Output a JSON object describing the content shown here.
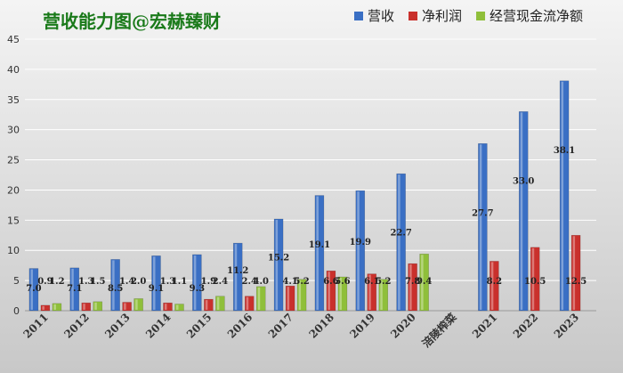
{
  "chart_data": {
    "type": "bar",
    "title": "营收能力图@宏赫臻财",
    "xlabel": "",
    "ylabel": "",
    "ylim": [
      0,
      45
    ],
    "yticks": [
      0,
      5,
      10,
      15,
      20,
      25,
      30,
      35,
      40,
      45
    ],
    "grid": true,
    "legend_position": "top-right",
    "categories": [
      "2011",
      "2012",
      "2013",
      "2014",
      "2015",
      "2016",
      "2017",
      "2018",
      "2019",
      "2020",
      "涪陵榨菜",
      "2021",
      "2022",
      "2023"
    ],
    "series": [
      {
        "name": "营收",
        "color": "#3a6fc4",
        "values": [
          7.0,
          7.1,
          8.5,
          9.1,
          9.3,
          11.2,
          15.2,
          19.1,
          19.9,
          22.7,
          null,
          27.7,
          33.0,
          38.1
        ]
      },
      {
        "name": "净利润",
        "color": "#c9302c",
        "values": [
          0.9,
          1.3,
          1.4,
          1.3,
          1.9,
          2.4,
          4.1,
          6.6,
          6.1,
          7.8,
          null,
          8.2,
          10.5,
          12.5
        ]
      },
      {
        "name": "经营现金流净额",
        "color": "#8fbf3a",
        "values": [
          1.2,
          1.5,
          2.0,
          1.1,
          2.4,
          4.0,
          5.2,
          5.6,
          5.2,
          9.4,
          null,
          null,
          null,
          null
        ]
      }
    ],
    "data_labels": [
      [
        "7.0",
        "7.1",
        "8.5",
        "9.1",
        "9.3",
        "11.2",
        "15.2",
        "19.1",
        "19.9",
        "22.7",
        "",
        "27.7",
        "33.0",
        "38.1"
      ],
      [
        "0.9",
        "1.3",
        "1.4",
        "1.3",
        "1.9",
        "2.4",
        "4.1",
        "6.6",
        "6.1",
        "7.8",
        "",
        "8.2",
        "10.5",
        "12.5"
      ],
      [
        "1.2",
        "1.5",
        "2.0",
        "1.1",
        "2.4",
        "4.0",
        "5.2",
        "5.6",
        "5.2",
        "9.4",
        "",
        "",
        "",
        ""
      ]
    ],
    "colors": {
      "background_top": "#f4f4f4",
      "background_bottom": "#c8c8c8",
      "title": "#1a7a1a"
    }
  }
}
